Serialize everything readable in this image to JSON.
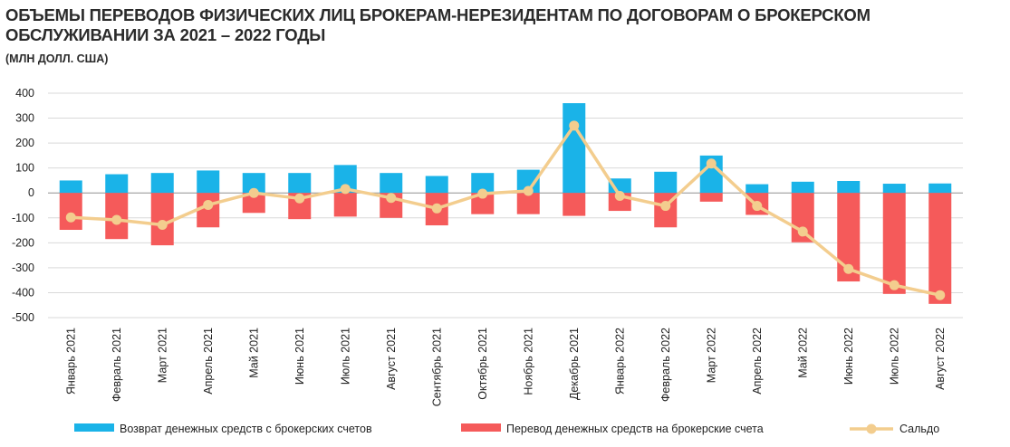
{
  "title": "ОБЪЕМЫ ПЕРЕВОДОВ ФИЗИЧЕСКИХ ЛИЦ БРОКЕРАМ-НЕРЕЗИДЕНТАМ ПО ДОГОВОРАМ О БРОКЕРСКОМ\nОБСЛУЖИВАНИИ ЗА 2021 – 2022 ГОДЫ",
  "subtitle": "(МЛН ДОЛЛ. США)",
  "colors": {
    "return": "#1ab3e8",
    "transfer": "#f55a5a",
    "saldo": "#f3cd8e",
    "grid": "#d9d9d9"
  },
  "chart_data": {
    "type": "bar",
    "title": "ОБЪЕМЫ ПЕРЕВОДОВ ФИЗИЧЕСКИХ ЛИЦ БРОКЕРАМ-НЕРЕЗИДЕНТАМ ПО ДОГОВОРАМ О БРОКЕРСКОМ ОБСЛУЖИВАНИИ ЗА 2021 – 2022 ГОДЫ",
    "ylabel": "(МЛН ДОЛЛ. США)",
    "ylim": [
      -500,
      400
    ],
    "yticks": [
      "400",
      "300",
      "200",
      "100",
      "0",
      "-100",
      "-200",
      "-300",
      "-400",
      "-500"
    ],
    "ytick_values": [
      400,
      300,
      200,
      100,
      0,
      -100,
      -200,
      -300,
      -400,
      -500
    ],
    "grid": true,
    "legend_position": "bottom",
    "categories": [
      "Январь 2021",
      "Февраль 2021",
      "Март 2021",
      "Апрель 2021",
      "Май 2021",
      "Июнь 2021",
      "Июль 2021",
      "Август 2021",
      "Сентябрь 2021",
      "Октябрь 2021",
      "Ноябрь 2021",
      "Декабрь 2021",
      "Январь 2022",
      "Февраль 2022",
      "Март 2022",
      "Апрель 2022",
      "Май 2022",
      "Июнь 2022",
      "Июль 2022",
      "Август 2022"
    ],
    "series": [
      {
        "name": "Возврат денежных средств с брокерских счетов",
        "type": "bar",
        "values": [
          50,
          75,
          80,
          90,
          80,
          80,
          112,
          80,
          68,
          80,
          93,
          360,
          58,
          85,
          150,
          35,
          45,
          48,
          37,
          38
        ]
      },
      {
        "name": "Перевод денежных средств на брокерские счета",
        "type": "bar",
        "values": [
          -148,
          -185,
          -210,
          -138,
          -80,
          -105,
          -95,
          -100,
          -130,
          -85,
          -85,
          -92,
          -72,
          -138,
          -35,
          -88,
          -198,
          -355,
          -405,
          -445
        ]
      },
      {
        "name": "Сальдо",
        "type": "line",
        "values": [
          -98,
          -108,
          -128,
          -48,
          0,
          -22,
          16,
          -20,
          -62,
          -3,
          8,
          270,
          -12,
          -52,
          118,
          -52,
          -155,
          -305,
          -370,
          -410
        ]
      }
    ]
  }
}
